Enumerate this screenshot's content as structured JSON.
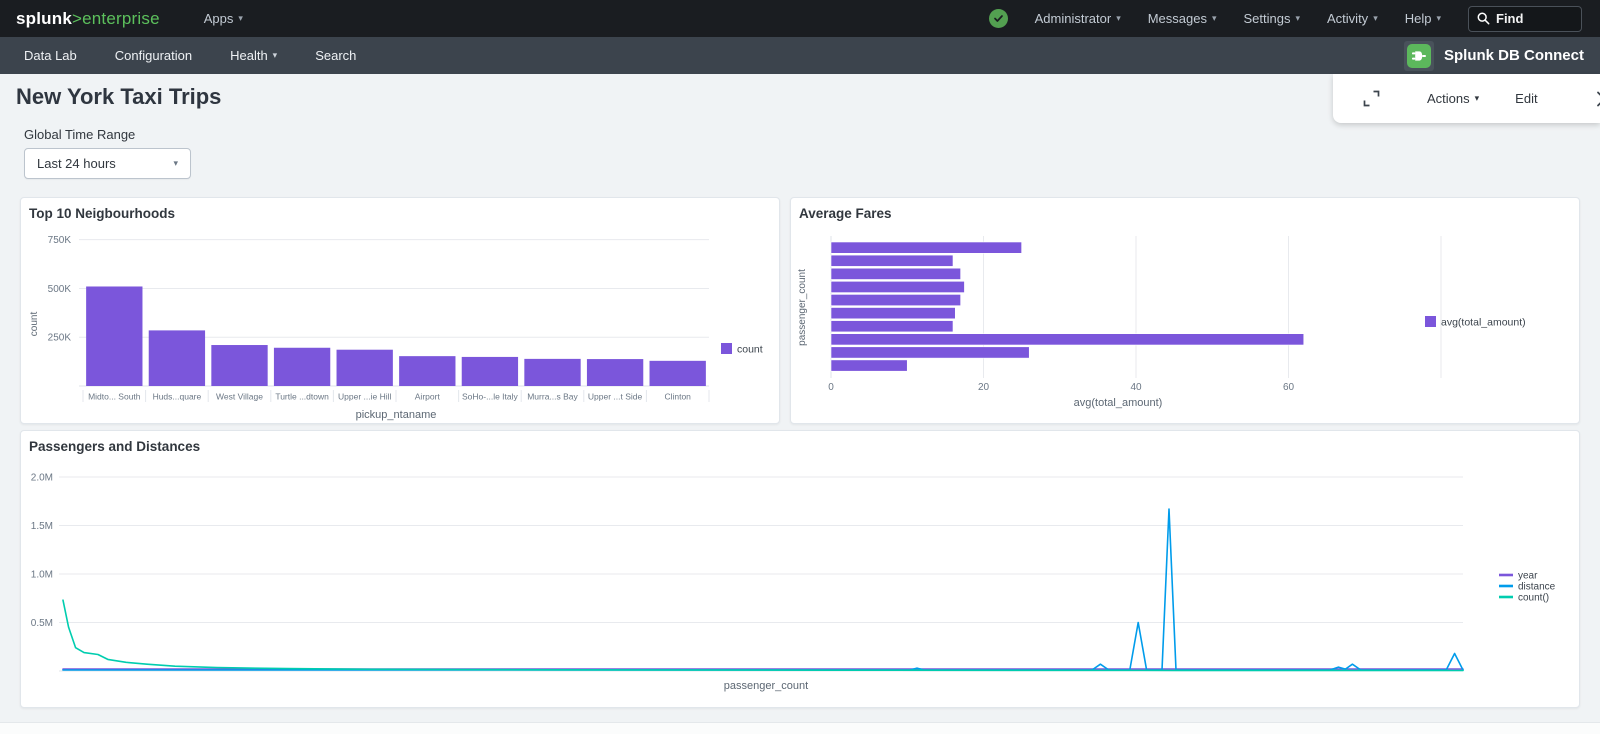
{
  "topnav": {
    "brand": "splunk",
    "product": ">enterprise",
    "apps_label": "Apps",
    "menus": [
      "Administrator",
      "Messages",
      "Settings",
      "Activity",
      "Help"
    ],
    "find_placeholder": "Find"
  },
  "appbar": {
    "items": [
      {
        "label": "Data Lab"
      },
      {
        "label": "Configuration"
      },
      {
        "label": "Health"
      },
      {
        "label": "Search"
      }
    ],
    "app_title": "Splunk DB Connect"
  },
  "header": {
    "title": "New York Taxi Trips",
    "actions_label": "Actions",
    "edit_label": "Edit"
  },
  "filters": {
    "time_range_label": "Global Time Range",
    "time_range_value": "Last 24 hours"
  },
  "colors": {
    "purple": "#7B56DB",
    "blue": "#009CEB",
    "teal": "#00CDAF",
    "grid": "#e8eaee",
    "tick_text": "#6b7785",
    "axis_title_text": "#5c6773",
    "legend_text": "#3c444d"
  },
  "chart_data": [
    {
      "type": "bar",
      "title": "Top 10 Neigbourhoods",
      "xlabel": "pickup_ntaname",
      "ylabel": "count",
      "legend": [
        {
          "label": "count",
          "color": "#7B56DB"
        }
      ],
      "categories": [
        "Midto... South",
        "Huds...quare",
        "West Village",
        "Turtle ...dtown",
        "Upper ...ie Hill",
        "Airport",
        "SoHo-...le Italy",
        "Murra...s Bay",
        "Upper ...t Side",
        "Clinton"
      ],
      "values": [
        510000,
        285000,
        210000,
        196000,
        186000,
        153000,
        149000,
        139000,
        138000,
        129000
      ],
      "ylim": [
        0,
        820000
      ],
      "yticks": [
        {
          "v": 250000,
          "label": "250K"
        },
        {
          "v": 500000,
          "label": "500K"
        },
        {
          "v": 750000,
          "label": "750K"
        }
      ]
    },
    {
      "type": "bar-horizontal",
      "title": "Average Fares",
      "xlabel": "avg(total_amount)",
      "ylabel": "passenger_count",
      "legend": [
        {
          "label": "avg(total_amount)",
          "color": "#7B56DB"
        }
      ],
      "values": [
        25,
        16,
        17,
        17.5,
        17,
        16.3,
        16,
        62,
        26,
        10
      ],
      "xlim": [
        0,
        85
      ],
      "xticks": [
        {
          "v": 0,
          "label": "0"
        },
        {
          "v": 20,
          "label": "20"
        },
        {
          "v": 40,
          "label": "40"
        },
        {
          "v": 60,
          "label": "60"
        },
        {
          "v": 80,
          "label": ""
        }
      ]
    },
    {
      "type": "line",
      "title": "Passengers and Distances",
      "xlabel": "passenger_count",
      "ylim_millions": [
        0,
        2.16
      ],
      "yticks": [
        {
          "v": 0.5,
          "label": "0.5M"
        },
        {
          "v": 1.0,
          "label": "1.0M"
        },
        {
          "v": 1.5,
          "label": "1.5M"
        },
        {
          "v": 2.0,
          "label": "2.0M"
        }
      ],
      "series": [
        {
          "name": "year",
          "color": "#7B56DB",
          "points": [
            [
              0,
              0.02
            ],
            [
              1,
              0.02
            ]
          ]
        },
        {
          "name": "distance",
          "color": "#009CEB",
          "points": [
            [
              0,
              0.01
            ],
            [
              0.605,
              0.01
            ],
            [
              0.61,
              0.03
            ],
            [
              0.615,
              0.01
            ],
            [
              0.735,
              0.01
            ],
            [
              0.741,
              0.07
            ],
            [
              0.747,
              0.01
            ],
            [
              0.762,
              0.01
            ],
            [
              0.768,
              0.5
            ],
            [
              0.774,
              0.01
            ],
            [
              0.785,
              0.01
            ],
            [
              0.79,
              1.67
            ],
            [
              0.795,
              0.01
            ],
            [
              0.905,
              0.01
            ],
            [
              0.911,
              0.04
            ],
            [
              0.916,
              0.02
            ],
            [
              0.921,
              0.07
            ],
            [
              0.927,
              0.01
            ],
            [
              0.988,
              0.01
            ],
            [
              0.994,
              0.18
            ],
            [
              1,
              0.01
            ]
          ]
        },
        {
          "name": "count()",
          "color": "#00CDAF",
          "points": [
            [
              0,
              0.73
            ],
            [
              0.004,
              0.45
            ],
            [
              0.009,
              0.24
            ],
            [
              0.015,
              0.19
            ],
            [
              0.025,
              0.17
            ],
            [
              0.032,
              0.12
            ],
            [
              0.045,
              0.09
            ],
            [
              0.06,
              0.07
            ],
            [
              0.08,
              0.05
            ],
            [
              0.11,
              0.035
            ],
            [
              0.16,
              0.025
            ],
            [
              0.22,
              0.018
            ],
            [
              0.35,
              0.012
            ],
            [
              0.55,
              0.008
            ],
            [
              0.8,
              0.006
            ],
            [
              1,
              0.005
            ]
          ]
        }
      ]
    }
  ]
}
